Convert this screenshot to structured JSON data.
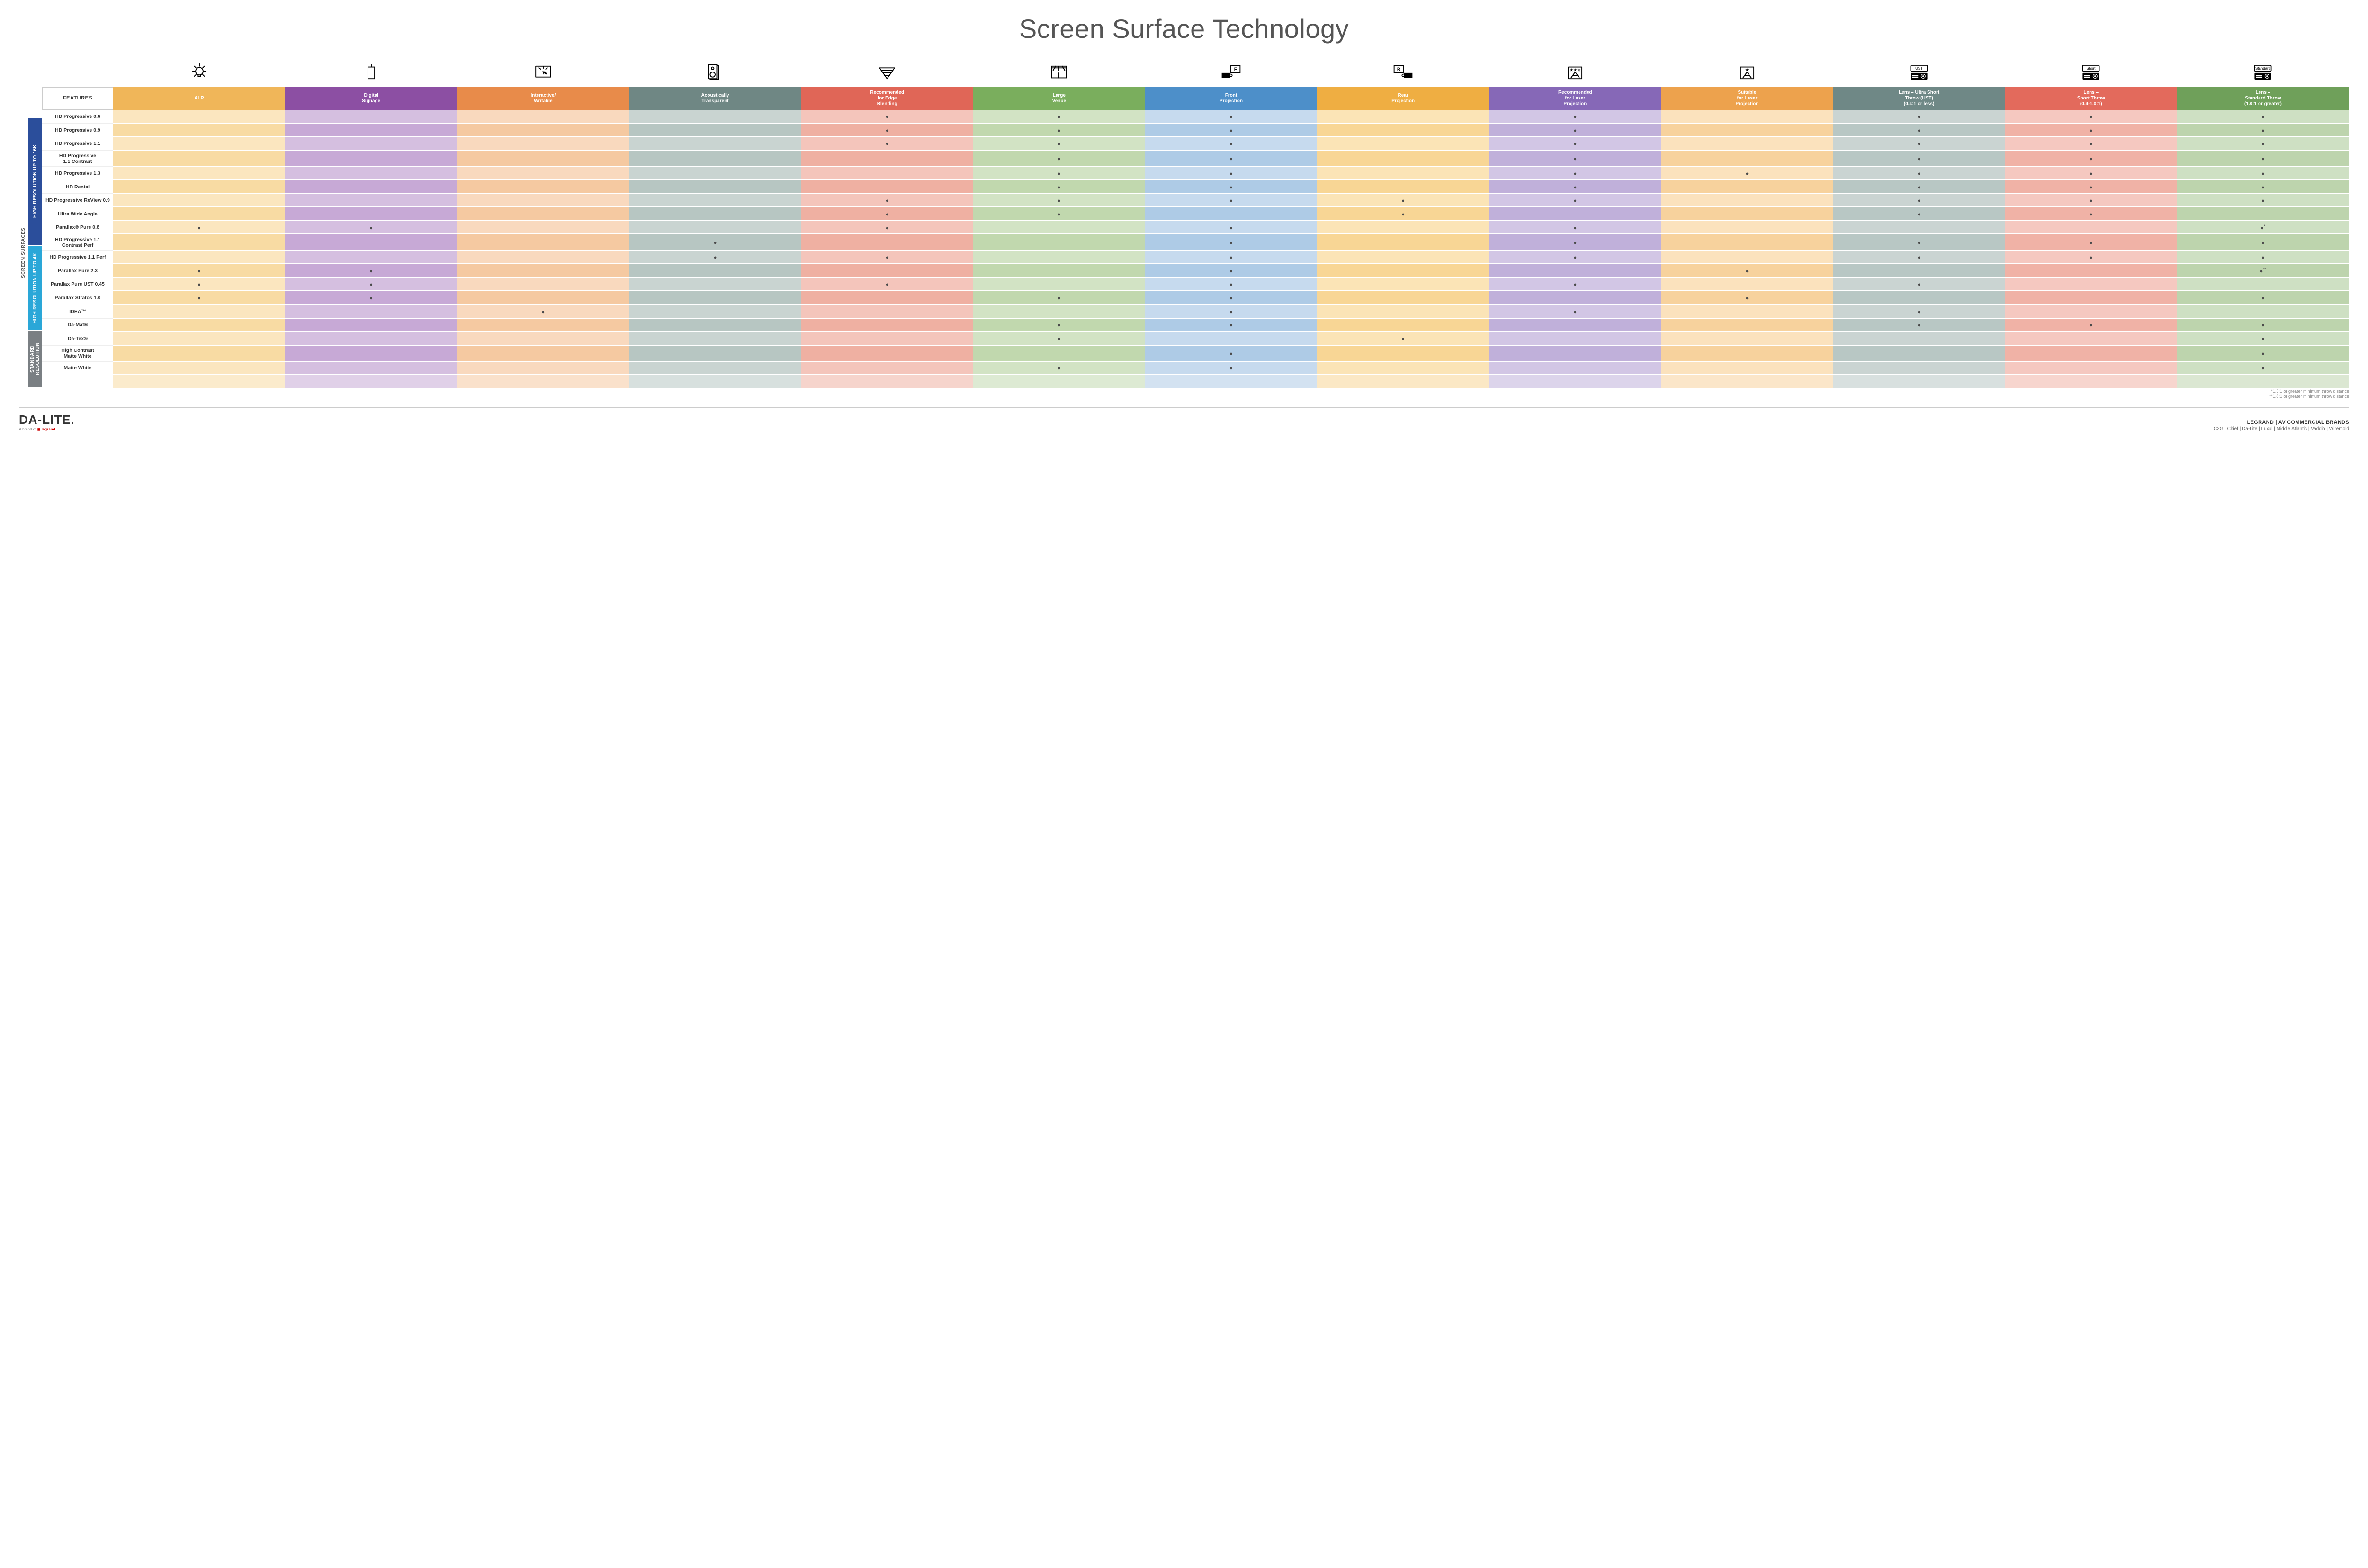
{
  "title": "Screen Surface Technology",
  "columns": [
    {
      "key": "alr",
      "label": "ALR",
      "color": "#f0b659"
    },
    {
      "key": "signage",
      "label": "Digital\nSignage",
      "color": "#8c4fa3"
    },
    {
      "key": "interactive",
      "label": "Interactive/\nWritable",
      "color": "#e88b4a"
    },
    {
      "key": "acoustic",
      "label": "Acoustically\nTransparent",
      "color": "#6f8784"
    },
    {
      "key": "edge",
      "label": "Recommended\nfor Edge\nBlending",
      "color": "#e06657"
    },
    {
      "key": "large",
      "label": "Large\nVenue",
      "color": "#7aae5d"
    },
    {
      "key": "front",
      "label": "Front\nProjection",
      "color": "#4d8fc9"
    },
    {
      "key": "rear",
      "label": "Rear\nProjection",
      "color": "#efae42"
    },
    {
      "key": "reclaser",
      "label": "Recommended\nfor Laser\nProjection",
      "color": "#8668b7"
    },
    {
      "key": "suitlaser",
      "label": "Suitable\nfor Laser\nProjection",
      "color": "#eda24d"
    },
    {
      "key": "ust",
      "label": "Lens – Ultra Short\nThrow (UST)\n(0.4:1 or less)",
      "color": "#6f8886"
    },
    {
      "key": "short",
      "label": "Lens –\nShort Throw\n(0.4-1.0:1)",
      "color": "#e36a5c"
    },
    {
      "key": "std",
      "label": "Lens –\nStandard Throw\n(1.0:1 or greater)",
      "color": "#6fa05a"
    }
  ],
  "column_tints": {
    "alr": [
      "#fbe6bf",
      "#f8dba3"
    ],
    "signage": [
      "#d5bfe0",
      "#c7a9d6"
    ],
    "interactive": [
      "#f9d9be",
      "#f5c9a1"
    ],
    "acoustic": [
      "#c9d4d1",
      "#b7c6c2"
    ],
    "edge": [
      "#f4c5bb",
      "#efb0a2"
    ],
    "large": [
      "#d2e3c4",
      "#c1d8ae"
    ],
    "front": [
      "#c6daee",
      "#aecbe6"
    ],
    "rear": [
      "#fbe4b6",
      "#f8d695"
    ],
    "reclaser": [
      "#d2c6e5",
      "#c0b0da"
    ],
    "suitlaser": [
      "#fbe2bd",
      "#f7d29d"
    ],
    "ust": [
      "#cad4d2",
      "#b8c7c4"
    ],
    "short": [
      "#f5c8c0",
      "#f0b2a6"
    ],
    "std": [
      "#cee0c3",
      "#bdd4ad"
    ]
  },
  "features_label": "FEATURES",
  "side_outer_label": "SCREEN SURFACES",
  "categories": [
    {
      "key": "hi16k",
      "label": "HIGH RESOLUTION UP TO 16K",
      "color": "#2b4e9b",
      "rows": 9
    },
    {
      "key": "hi4k",
      "label": "HIGH RESOLUTION UP TO 4K",
      "color": "#2aa7d8",
      "rows": 6
    },
    {
      "key": "std",
      "label": "STANDARD\nRESOLUTION",
      "color": "#7a7f83",
      "rows": 4
    }
  ],
  "rows": [
    {
      "label": "HD Progressive 0.6",
      "marks": {
        "edge": "●",
        "large": "●",
        "front": "●",
        "reclaser": "●",
        "ust": "●",
        "short": "●",
        "std": "●"
      }
    },
    {
      "label": "HD Progressive 0.9",
      "marks": {
        "edge": "●",
        "large": "●",
        "front": "●",
        "reclaser": "●",
        "ust": "●",
        "short": "●",
        "std": "●"
      }
    },
    {
      "label": "HD Progressive 1.1",
      "marks": {
        "edge": "●",
        "large": "●",
        "front": "●",
        "reclaser": "●",
        "ust": "●",
        "short": "●",
        "std": "●"
      }
    },
    {
      "label": "HD Progressive\n1.1 Contrast",
      "marks": {
        "large": "●",
        "front": "●",
        "reclaser": "●",
        "ust": "●",
        "short": "●",
        "std": "●"
      }
    },
    {
      "label": "HD Progressive 1.3",
      "marks": {
        "large": "●",
        "front": "●",
        "reclaser": "●",
        "suitlaser": "●",
        "ust": "●",
        "short": "●",
        "std": "●"
      }
    },
    {
      "label": "HD Rental",
      "marks": {
        "large": "●",
        "front": "●",
        "reclaser": "●",
        "ust": "●",
        "short": "●",
        "std": "●"
      }
    },
    {
      "label": "HD Progressive ReView 0.9",
      "marks": {
        "edge": "●",
        "large": "●",
        "front": "●",
        "rear": "●",
        "reclaser": "●",
        "ust": "●",
        "short": "●",
        "std": "●"
      }
    },
    {
      "label": "Ultra Wide Angle",
      "marks": {
        "edge": "●",
        "large": "●",
        "rear": "●",
        "ust": "●",
        "short": "●"
      }
    },
    {
      "label": "Parallax® Pure 0.8",
      "marks": {
        "alr": "●",
        "signage": "●",
        "edge": "●",
        "front": "●",
        "reclaser": "●",
        "std": "●*"
      }
    },
    {
      "label": "HD Progressive 1.1\nContrast Perf",
      "marks": {
        "acoustic": "●",
        "front": "●",
        "reclaser": "●",
        "ust": "●",
        "short": "●",
        "std": "●"
      }
    },
    {
      "label": "HD Progressive 1.1 Perf",
      "marks": {
        "acoustic": "●",
        "edge": "●",
        "front": "●",
        "reclaser": "●",
        "ust": "●",
        "short": "●",
        "std": "●"
      }
    },
    {
      "label": "Parallax Pure 2.3",
      "marks": {
        "alr": "●",
        "signage": "●",
        "front": "●",
        "suitlaser": "●",
        "std": "●**"
      }
    },
    {
      "label": "Parallax Pure UST 0.45",
      "marks": {
        "alr": "●",
        "signage": "●",
        "edge": "●",
        "front": "●",
        "reclaser": "●",
        "ust": "●"
      }
    },
    {
      "label": "Parallax Stratos 1.0",
      "marks": {
        "alr": "●",
        "signage": "●",
        "large": "●",
        "front": "●",
        "suitlaser": "●",
        "std": "●"
      }
    },
    {
      "label": "IDEA™",
      "marks": {
        "interactive": "●",
        "front": "●",
        "reclaser": "●",
        "ust": "●"
      }
    },
    {
      "label": "Da-Mat®",
      "marks": {
        "large": "●",
        "front": "●",
        "ust": "●",
        "short": "●",
        "std": "●"
      }
    },
    {
      "label": "Da-Tex®",
      "marks": {
        "large": "●",
        "rear": "●",
        "std": "●"
      }
    },
    {
      "label": "High Contrast\nMatte White",
      "marks": {
        "front": "●",
        "std": "●"
      }
    },
    {
      "label": "Matte White",
      "marks": {
        "large": "●",
        "front": "●",
        "std": "●"
      }
    }
  ],
  "footnotes": [
    "*1.5:1 or greater minimum throw distance",
    "**1.8:1 or greater minimum throw distance"
  ],
  "footer": {
    "logo": "DA-LITE.",
    "logo_sub_prefix": "A brand of ",
    "logo_sub_brand": "legrand",
    "brands_header": "LEGRAND | AV COMMERCIAL BRANDS",
    "brands": "C2G  |  Chief  |  Da-Lite  |  Luxul  |  Middle Atlantic  |  Vaddio  |  Wiremold"
  },
  "icons": {
    "alr": "bulb",
    "signage": "signage",
    "interactive": "touch",
    "acoustic": "speaker",
    "edge": "blend",
    "large": "venue",
    "front": "front",
    "rear": "rear",
    "reclaser": "laser3",
    "suitlaser": "laser1",
    "ust": "proj-ust",
    "short": "proj-short",
    "std": "proj-std"
  }
}
